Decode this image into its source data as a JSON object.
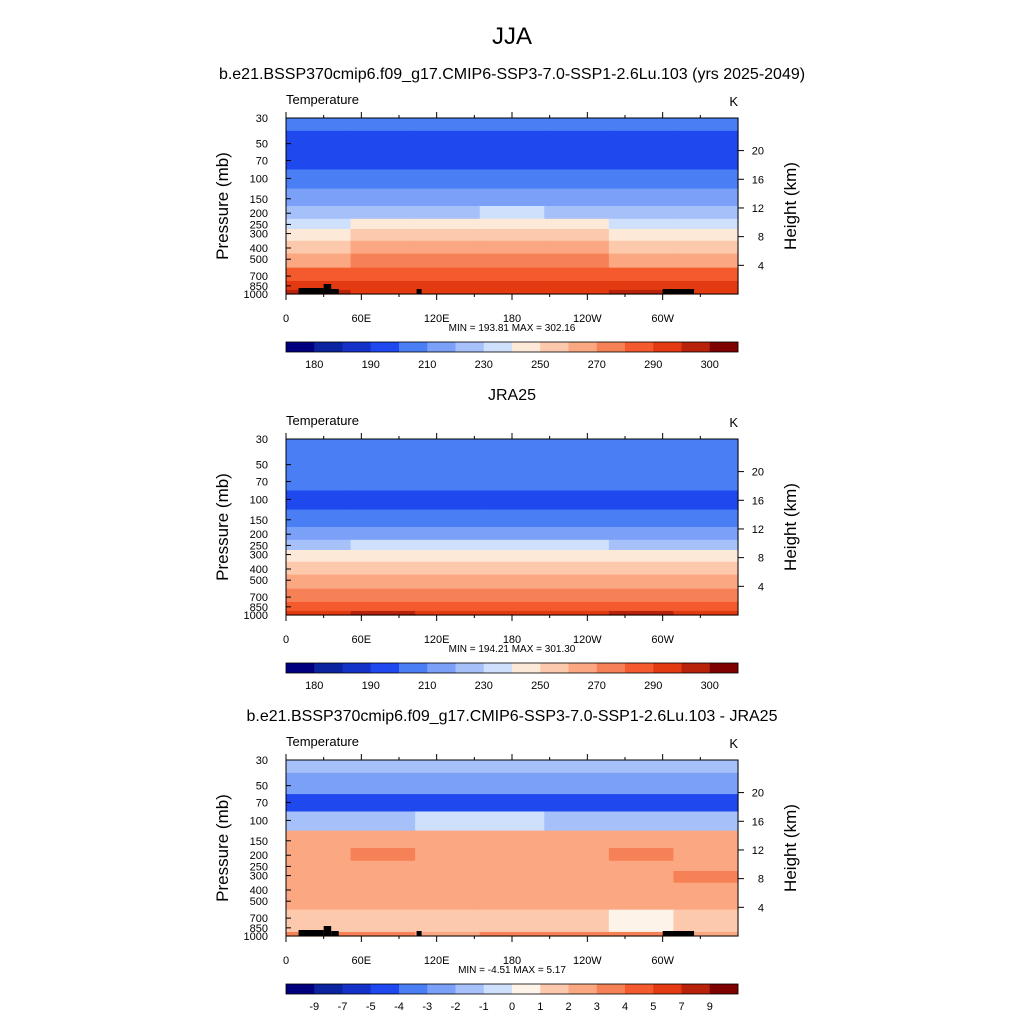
{
  "page": {
    "title": "JJA"
  },
  "colors": {
    "abs_palette": [
      "#00007f",
      "#0a24a0",
      "#1432c8",
      "#1f48ef",
      "#4a7ef5",
      "#7aa0f7",
      "#a6c0fa",
      "#cfe0fd",
      "#fde9d8",
      "#fcc9ad",
      "#fba882",
      "#f78157",
      "#f45a2e",
      "#e33a11",
      "#b8210a",
      "#7f0000"
    ],
    "diff_palette": [
      "#00007f",
      "#0a24a0",
      "#1432c8",
      "#1f48ef",
      "#4a7ef5",
      "#7aa0f7",
      "#a6c0fa",
      "#cfe0fd",
      "#fdf3e8",
      "#fcc9ad",
      "#fba882",
      "#f78157",
      "#f45a2e",
      "#e33a11",
      "#b8210a",
      "#7f0000"
    ],
    "topography": "#000000"
  },
  "axes": {
    "y_left_label": "Pressure (mb)",
    "y_right_label": "Height (km)",
    "pressure_ticks": [
      30,
      50,
      70,
      100,
      150,
      200,
      250,
      300,
      400,
      500,
      700,
      850,
      1000
    ],
    "height_ticks": [
      4,
      8,
      12,
      16,
      20
    ],
    "longitude_ticks": [
      "0",
      "60E",
      "120E",
      "180",
      "120W",
      "60W"
    ],
    "ylim": [
      1000,
      30
    ],
    "xlim": [
      0,
      360
    ]
  },
  "chart_data": [
    {
      "type": "heatmap",
      "panel_title": "b.e21.BSSP370cmip6.f09_g17.CMIP6-SSP3-7.0-SSP1-2.6Lu.103 (yrs 2025-2049)",
      "left_label": "Temperature",
      "right_label": "K",
      "stats": "MIN = 193.81  MAX = 302.16",
      "colorbar_labels": [
        "180",
        "190",
        "210",
        "230",
        "250",
        "270",
        "290",
        "300"
      ],
      "levels": [
        30,
        50,
        70,
        100,
        150,
        200,
        250,
        300,
        400,
        500,
        700,
        850,
        1000
      ],
      "values": [
        [
          4,
          4,
          4,
          4,
          4,
          4,
          4
        ],
        [
          3,
          3,
          3,
          3,
          3,
          3,
          3
        ],
        [
          3,
          3,
          3,
          3,
          3,
          3,
          3
        ],
        [
          4,
          4,
          4,
          4,
          4,
          4,
          4
        ],
        [
          5,
          5,
          5,
          5,
          5,
          5,
          5
        ],
        [
          6,
          6,
          6,
          7,
          6,
          6,
          6
        ],
        [
          7,
          8,
          8,
          8,
          8,
          7,
          7
        ],
        [
          8,
          9,
          9,
          9,
          9,
          8,
          8
        ],
        [
          9,
          10,
          10,
          10,
          10,
          9,
          9
        ],
        [
          10,
          11,
          11,
          11,
          11,
          10,
          10
        ],
        [
          12,
          12,
          12,
          12,
          12,
          12,
          12
        ],
        [
          13,
          13,
          13,
          13,
          13,
          13,
          13
        ],
        [
          14,
          13,
          13,
          13,
          13,
          14,
          13
        ]
      ],
      "topography": true
    },
    {
      "type": "heatmap",
      "panel_title": "JRA25",
      "left_label": "Temperature",
      "right_label": "K",
      "stats": "MIN = 194.21  MAX = 301.30",
      "colorbar_labels": [
        "180",
        "190",
        "210",
        "230",
        "250",
        "270",
        "290",
        "300"
      ],
      "levels": [
        30,
        50,
        70,
        100,
        150,
        200,
        250,
        300,
        400,
        500,
        700,
        850,
        1000
      ],
      "values": [
        [
          4,
          4,
          4,
          4,
          4,
          4,
          4
        ],
        [
          4,
          4,
          4,
          4,
          4,
          4,
          4
        ],
        [
          4,
          4,
          4,
          4,
          4,
          4,
          4
        ],
        [
          3,
          3,
          3,
          3,
          3,
          3,
          3
        ],
        [
          4,
          4,
          4,
          4,
          4,
          4,
          4
        ],
        [
          5,
          5,
          5,
          5,
          5,
          5,
          5
        ],
        [
          6,
          7,
          7,
          7,
          7,
          6,
          6
        ],
        [
          8,
          8,
          8,
          8,
          8,
          8,
          8
        ],
        [
          9,
          9,
          9,
          9,
          9,
          9,
          9
        ],
        [
          10,
          10,
          10,
          10,
          10,
          10,
          10
        ],
        [
          11,
          11,
          11,
          11,
          11,
          11,
          11
        ],
        [
          12,
          12,
          12,
          12,
          12,
          12,
          12
        ],
        [
          13,
          14,
          13,
          13,
          13,
          14,
          13
        ]
      ],
      "topography": false
    },
    {
      "type": "heatmap",
      "panel_title": "b.e21.BSSP370cmip6.f09_g17.CMIP6-SSP3-7.0-SSP1-2.6Lu.103 - JRA25",
      "left_label": "Temperature",
      "right_label": "K",
      "stats": "MIN =  -4.51  MAX =   5.17",
      "colorbar_labels": [
        "-9",
        "-7",
        "-5",
        "-4",
        "-3",
        "-2",
        "-1",
        "0",
        "1",
        "2",
        "3",
        "4",
        "5",
        "7",
        "9"
      ],
      "levels": [
        30,
        50,
        70,
        100,
        150,
        200,
        250,
        300,
        400,
        500,
        700,
        850,
        1000
      ],
      "values": [
        [
          6,
          6,
          6,
          6,
          6,
          6,
          6
        ],
        [
          5,
          5,
          5,
          5,
          5,
          5,
          5
        ],
        [
          3,
          3,
          3,
          3,
          3,
          3,
          3
        ],
        [
          6,
          6,
          7,
          7,
          6,
          6,
          6
        ],
        [
          10,
          10,
          10,
          10,
          10,
          10,
          10
        ],
        [
          10,
          11,
          10,
          10,
          10,
          11,
          10
        ],
        [
          10,
          10,
          10,
          10,
          10,
          10,
          10
        ],
        [
          10,
          10,
          10,
          10,
          10,
          10,
          11
        ],
        [
          10,
          10,
          10,
          10,
          10,
          10,
          10
        ],
        [
          10,
          10,
          10,
          10,
          10,
          10,
          10
        ],
        [
          9,
          9,
          9,
          9,
          9,
          8,
          9
        ],
        [
          9,
          9,
          9,
          9,
          9,
          8,
          9
        ],
        [
          11,
          11,
          10,
          11,
          11,
          11,
          10
        ]
      ],
      "topography": true
    }
  ]
}
